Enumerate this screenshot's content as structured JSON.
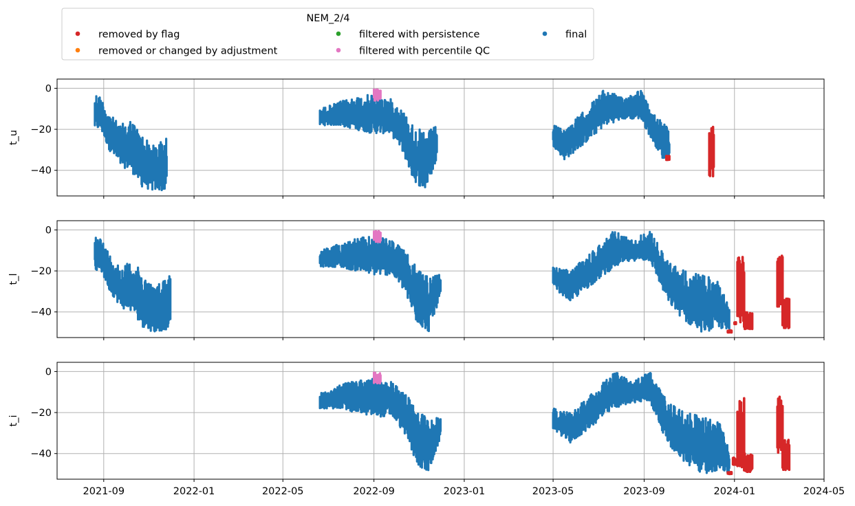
{
  "chart_data": {
    "type": "scatter",
    "legend": {
      "title": "NEM_2/4",
      "placement": "top-left, above plots",
      "entries": [
        {
          "label": "removed by flag",
          "color": "#d62728"
        },
        {
          "label": "removed or changed by adjustment",
          "color": "#ff7f0e"
        },
        {
          "label": "filtered with persistence",
          "color": "#2ca02c"
        },
        {
          "label": "filtered with percentile QC",
          "color": "#e377c2"
        },
        {
          "label": "final",
          "color": "#1f77b4"
        }
      ]
    },
    "x_ticks": [
      "2021-09",
      "2022-01",
      "2022-05",
      "2022-09",
      "2023-01",
      "2023-05",
      "2023-09",
      "2024-01",
      "2024-05"
    ],
    "xlim": [
      "2021-06-30",
      "2024-05-01"
    ],
    "grid": true,
    "panels": [
      {
        "ylabel": "t_u",
        "ylim": [
          -52.5,
          4.5
        ],
        "y_ticks": [
          0,
          -20,
          -40
        ],
        "final_segments": [
          {
            "start": "2021-08-20",
            "end": "2021-11-25",
            "upper": [
              [
                0,
                -2
              ],
              [
                0.08,
                -4
              ],
              [
                0.2,
                -12
              ],
              [
                0.35,
                -18
              ],
              [
                0.5,
                -15
              ],
              [
                0.65,
                -22
              ],
              [
                0.8,
                -28
              ],
              [
                1,
                -24
              ]
            ],
            "lower": [
              [
                0,
                -20
              ],
              [
                0.08,
                -20
              ],
              [
                0.2,
                -30
              ],
              [
                0.35,
                -38
              ],
              [
                0.5,
                -40
              ],
              [
                0.65,
                -48
              ],
              [
                0.8,
                -50
              ],
              [
                1,
                -50
              ]
            ]
          },
          {
            "start": "2022-06-20",
            "end": "2022-11-25",
            "upper": [
              [
                0,
                -10
              ],
              [
                0.15,
                -7
              ],
              [
                0.3,
                -4
              ],
              [
                0.45,
                -3
              ],
              [
                0.6,
                -5
              ],
              [
                0.7,
                -10
              ],
              [
                0.8,
                -18
              ],
              [
                0.9,
                -22
              ],
              [
                1,
                -18
              ]
            ],
            "lower": [
              [
                0,
                -18
              ],
              [
                0.15,
                -18
              ],
              [
                0.3,
                -20
              ],
              [
                0.45,
                -22
              ],
              [
                0.6,
                -22
              ],
              [
                0.7,
                -30
              ],
              [
                0.8,
                -45
              ],
              [
                0.9,
                -50
              ],
              [
                1,
                -35
              ]
            ]
          },
          {
            "start": "2023-05-01",
            "end": "2023-10-05",
            "upper": [
              [
                0,
                -18
              ],
              [
                0.1,
                -20
              ],
              [
                0.25,
                -12
              ],
              [
                0.45,
                0
              ],
              [
                0.6,
                -5
              ],
              [
                0.75,
                0
              ],
              [
                0.85,
                -12
              ],
              [
                0.95,
                -15
              ],
              [
                1,
                -22
              ]
            ],
            "lower": [
              [
                0,
                -28
              ],
              [
                0.1,
                -35
              ],
              [
                0.25,
                -28
              ],
              [
                0.45,
                -18
              ],
              [
                0.6,
                -15
              ],
              [
                0.75,
                -15
              ],
              [
                0.85,
                -25
              ],
              [
                0.95,
                -35
              ],
              [
                1,
                -35
              ]
            ]
          }
        ],
        "pink_segments": [
          {
            "start": "2022-09-01",
            "end": "2022-09-10",
            "top": -0.5,
            "bottom": -6
          }
        ],
        "red_segments": [
          {
            "start": "2023-10-01",
            "end": "2023-10-05",
            "top": -33,
            "bottom": -35
          },
          {
            "start": "2023-11-28",
            "end": "2023-12-04",
            "top": -18,
            "bottom": -43
          }
        ]
      },
      {
        "ylabel": "t_l",
        "ylim": [
          -52.5,
          4.5
        ],
        "y_ticks": [
          0,
          -20,
          -40
        ],
        "final_segments": [
          {
            "start": "2021-08-20",
            "end": "2021-11-30",
            "upper": [
              [
                0,
                -2
              ],
              [
                0.08,
                -4
              ],
              [
                0.2,
                -12
              ],
              [
                0.35,
                -18
              ],
              [
                0.5,
                -15
              ],
              [
                0.65,
                -22
              ],
              [
                0.8,
                -28
              ],
              [
                1,
                -20
              ]
            ],
            "lower": [
              [
                0,
                -20
              ],
              [
                0.08,
                -20
              ],
              [
                0.2,
                -30
              ],
              [
                0.35,
                -38
              ],
              [
                0.5,
                -40
              ],
              [
                0.65,
                -48
              ],
              [
                0.8,
                -50
              ],
              [
                1,
                -48
              ]
            ]
          },
          {
            "start": "2022-06-20",
            "end": "2022-11-30",
            "upper": [
              [
                0,
                -10
              ],
              [
                0.15,
                -7
              ],
              [
                0.3,
                -4
              ],
              [
                0.45,
                -3
              ],
              [
                0.6,
                -5
              ],
              [
                0.7,
                -10
              ],
              [
                0.8,
                -18
              ],
              [
                0.9,
                -22
              ],
              [
                1,
                -22
              ]
            ],
            "lower": [
              [
                0,
                -18
              ],
              [
                0.15,
                -18
              ],
              [
                0.3,
                -20
              ],
              [
                0.45,
                -22
              ],
              [
                0.6,
                -22
              ],
              [
                0.7,
                -30
              ],
              [
                0.8,
                -45
              ],
              [
                0.9,
                -50
              ],
              [
                1,
                -32
              ]
            ]
          },
          {
            "start": "2023-05-01",
            "end": "2023-12-25",
            "upper": [
              [
                0,
                -18
              ],
              [
                0.1,
                -20
              ],
              [
                0.2,
                -12
              ],
              [
                0.35,
                0
              ],
              [
                0.45,
                -5
              ],
              [
                0.55,
                0
              ],
              [
                0.65,
                -15
              ],
              [
                0.75,
                -20
              ],
              [
                0.85,
                -22
              ],
              [
                0.95,
                -25
              ],
              [
                1,
                -38
              ]
            ],
            "lower": [
              [
                0,
                -28
              ],
              [
                0.1,
                -35
              ],
              [
                0.2,
                -28
              ],
              [
                0.35,
                -18
              ],
              [
                0.45,
                -15
              ],
              [
                0.55,
                -15
              ],
              [
                0.65,
                -35
              ],
              [
                0.75,
                -45
              ],
              [
                0.85,
                -50
              ],
              [
                0.95,
                -48
              ],
              [
                1,
                -50
              ]
            ]
          }
        ],
        "pink_segments": [
          {
            "start": "2022-09-01",
            "end": "2022-09-10",
            "top": -0.5,
            "bottom": -6
          }
        ],
        "red_segments": [
          {
            "start": "2023-12-23",
            "end": "2023-12-28",
            "top": -49,
            "bottom": -50
          },
          {
            "start": "2024-01-01",
            "end": "2024-01-03",
            "top": -45,
            "bottom": -46
          },
          {
            "start": "2024-01-05",
            "end": "2024-01-14",
            "top": -13,
            "bottom": -45
          },
          {
            "start": "2024-01-14",
            "end": "2024-01-25",
            "top": -40,
            "bottom": -49
          },
          {
            "start": "2024-02-28",
            "end": "2024-03-06",
            "top": -12,
            "bottom": -40
          },
          {
            "start": "2024-03-06",
            "end": "2024-03-15",
            "top": -33,
            "bottom": -48
          }
        ]
      },
      {
        "ylabel": "t_i",
        "ylim": [
          -52.5,
          4.5
        ],
        "y_ticks": [
          0,
          -20,
          -40
        ],
        "final_segments": [
          {
            "start": "2022-06-20",
            "end": "2022-11-30",
            "upper": [
              [
                0,
                -10
              ],
              [
                0.15,
                -7
              ],
              [
                0.3,
                -4
              ],
              [
                0.45,
                -3
              ],
              [
                0.6,
                -5
              ],
              [
                0.7,
                -10
              ],
              [
                0.8,
                -18
              ],
              [
                0.9,
                -22
              ],
              [
                1,
                -22
              ]
            ],
            "lower": [
              [
                0,
                -18
              ],
              [
                0.15,
                -18
              ],
              [
                0.3,
                -20
              ],
              [
                0.45,
                -22
              ],
              [
                0.6,
                -22
              ],
              [
                0.7,
                -30
              ],
              [
                0.8,
                -45
              ],
              [
                0.9,
                -50
              ],
              [
                1,
                -32
              ]
            ]
          },
          {
            "start": "2023-05-01",
            "end": "2023-12-25",
            "upper": [
              [
                0,
                -18
              ],
              [
                0.1,
                -20
              ],
              [
                0.2,
                -12
              ],
              [
                0.35,
                0
              ],
              [
                0.45,
                -5
              ],
              [
                0.55,
                0
              ],
              [
                0.65,
                -15
              ],
              [
                0.75,
                -20
              ],
              [
                0.85,
                -22
              ],
              [
                0.95,
                -25
              ],
              [
                1,
                -38
              ]
            ],
            "lower": [
              [
                0,
                -28
              ],
              [
                0.1,
                -35
              ],
              [
                0.2,
                -28
              ],
              [
                0.35,
                -18
              ],
              [
                0.45,
                -15
              ],
              [
                0.55,
                -15
              ],
              [
                0.65,
                -35
              ],
              [
                0.75,
                -45
              ],
              [
                0.85,
                -50
              ],
              [
                0.95,
                -48
              ],
              [
                1,
                -50
              ]
            ]
          }
        ],
        "pink_segments": [
          {
            "start": "2022-09-01",
            "end": "2022-09-10",
            "top": -0.5,
            "bottom": -6
          }
        ],
        "red_segments": [
          {
            "start": "2023-12-23",
            "end": "2023-12-28",
            "top": -49,
            "bottom": -50
          },
          {
            "start": "2023-12-30",
            "end": "2024-01-03",
            "top": -42,
            "bottom": -46
          },
          {
            "start": "2024-01-05",
            "end": "2024-01-14",
            "top": -13,
            "bottom": -47
          },
          {
            "start": "2024-01-14",
            "end": "2024-01-25",
            "top": -40,
            "bottom": -49
          },
          {
            "start": "2024-02-28",
            "end": "2024-03-06",
            "top": -12,
            "bottom": -40
          },
          {
            "start": "2024-03-06",
            "end": "2024-03-15",
            "top": -33,
            "bottom": -48
          }
        ]
      }
    ]
  }
}
